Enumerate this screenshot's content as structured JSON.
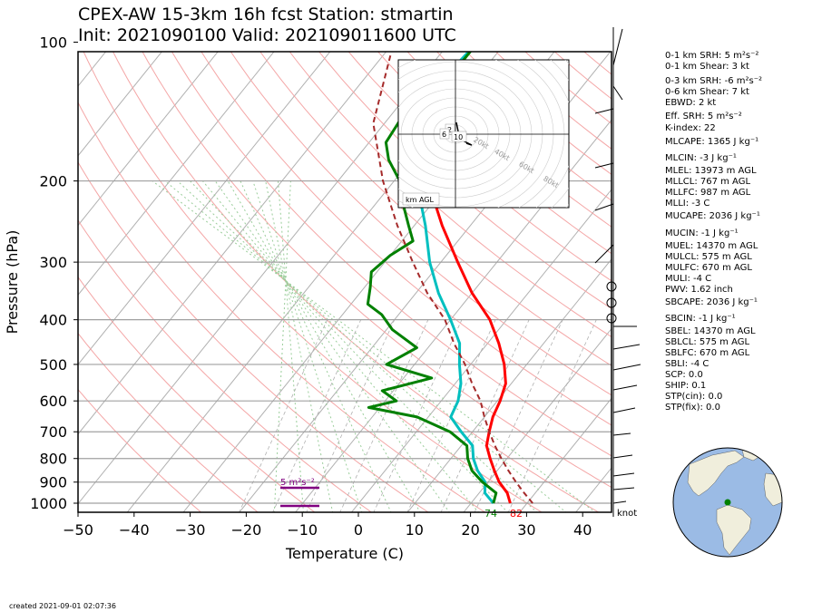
{
  "title": {
    "line1": "CPEX-AW 15-3km  16h fcst  Station: stmartin",
    "line2": "Init: 2021090100  Valid: 202109011600 UTC"
  },
  "created": "created 2021-09-01 02:07:36",
  "chart_data": {
    "type": "line",
    "subtype": "skew-T log-P",
    "xlabel": "Temperature (C)",
    "ylabel": "Pressure (hPa)",
    "xlim": [
      -50,
      45
    ],
    "ylim": [
      1050,
      100
    ],
    "y_scale": "log",
    "grid": true,
    "x_ticks": [
      "−50",
      "−40",
      "−30",
      "−20",
      "−10",
      "0",
      "10",
      "20",
      "30",
      "40"
    ],
    "y_ticks": [
      1000,
      900,
      800,
      700,
      600,
      500,
      400,
      300,
      200,
      100
    ],
    "series": [
      {
        "color": "#ff0000",
        "points": [
          [
            27,
            1000
          ],
          [
            25,
            950
          ],
          [
            22,
            900
          ],
          [
            19.5,
            850
          ],
          [
            17,
            800
          ],
          [
            14.5,
            750
          ],
          [
            13,
            700
          ],
          [
            11.5,
            650
          ],
          [
            10.5,
            600
          ],
          [
            9,
            550
          ],
          [
            6,
            500
          ],
          [
            2,
            450
          ],
          [
            -3,
            400
          ],
          [
            -10,
            350
          ],
          [
            -17,
            300
          ],
          [
            -25,
            250
          ],
          [
            -34,
            200
          ]
        ]
      },
      {
        "color": "#00bfbf",
        "points": [
          [
            24,
            1000
          ],
          [
            21,
            950
          ],
          [
            19.5,
            900
          ],
          [
            16.5,
            850
          ],
          [
            14,
            800
          ],
          [
            12,
            750
          ],
          [
            8,
            700
          ],
          [
            4,
            650
          ],
          [
            3,
            600
          ],
          [
            1,
            550
          ],
          [
            -2,
            500
          ],
          [
            -5,
            450
          ],
          [
            -10,
            400
          ],
          [
            -16,
            350
          ],
          [
            -22,
            300
          ],
          [
            -28,
            250
          ],
          [
            -36,
            200
          ],
          [
            -43,
            160
          ],
          [
            -46,
            120
          ],
          [
            -45,
            100
          ]
        ]
      },
      {
        "color": "#008000",
        "points": [
          [
            24,
            1000
          ],
          [
            23,
            950
          ],
          [
            19,
            900
          ],
          [
            15.5,
            850
          ],
          [
            13,
            800
          ],
          [
            11,
            750
          ],
          [
            6,
            700
          ],
          [
            -2,
            650
          ],
          [
            -12,
            620
          ],
          [
            -8,
            600
          ],
          [
            -12,
            570
          ],
          [
            -5,
            535
          ],
          [
            -15,
            500
          ],
          [
            -12,
            460
          ],
          [
            -19,
            420
          ],
          [
            -23,
            390
          ],
          [
            -27,
            370
          ],
          [
            -29,
            340
          ],
          [
            -31,
            315
          ],
          [
            -30,
            290
          ],
          [
            -28,
            270
          ],
          [
            -31,
            250
          ],
          [
            -35,
            225
          ],
          [
            -39,
            200
          ],
          [
            -44,
            180
          ],
          [
            -47,
            165
          ],
          [
            -48,
            140
          ],
          [
            -45,
            125
          ],
          [
            -45,
            100
          ]
        ]
      },
      {
        "color": "#a52a2a",
        "dashed": true,
        "points": [
          [
            31,
            1000
          ],
          [
            28,
            950
          ],
          [
            25,
            900
          ],
          [
            22,
            850
          ],
          [
            19,
            800
          ],
          [
            16,
            750
          ],
          [
            13,
            700
          ],
          [
            10,
            650
          ],
          [
            7,
            600
          ],
          [
            3,
            550
          ],
          [
            -1,
            500
          ],
          [
            -6,
            450
          ],
          [
            -11,
            400
          ],
          [
            -18,
            350
          ],
          [
            -25,
            300
          ],
          [
            -33,
            250
          ],
          [
            -42,
            200
          ],
          [
            -52,
            150
          ],
          [
            -60,
            100
          ]
        ]
      }
    ],
    "surface_labels": [
      {
        "text": "74",
        "color": "#008000",
        "t": 23.5
      },
      {
        "text": "82",
        "color": "#ff0000",
        "t": 28
      }
    ],
    "srh_bar_label": "5 m²s⁻²",
    "hodograph": {
      "rings": [
        "20kt",
        "40kt",
        "60kt",
        "80kt"
      ],
      "height_labels": [
        "2",
        "6",
        "10"
      ],
      "label": "km AGL"
    },
    "wind_units": "knot"
  },
  "indices": [
    "0-1 km SRH: 5 m²s⁻²",
    "0-1 km Shear: 3 kt",
    "0-3 km SRH: -6 m²s⁻²",
    "0-6 km Shear: 7 kt",
    "EBWD: 2 kt",
    "Eff. SRH: 5 m²s⁻²",
    "K-index: 22",
    "MLCAPE: 1365 J kg⁻¹",
    "MLCIN: -3 J kg⁻¹",
    "MLEL: 13973 m AGL",
    "MLLCL: 767 m AGL",
    "MLLFC: 987 m AGL",
    "MLLI: -3 C",
    "MUCAPE: 2036 J kg⁻¹",
    "MUCIN: -1 J kg⁻¹",
    "MUEL: 14370 m AGL",
    "MULCL: 575 m AGL",
    "MULFC: 670 m AGL",
    "MULI: -4 C",
    "PWV: 1.62 inch",
    "SBCAPE: 2036 J kg⁻¹",
    "SBCIN: -1 J kg⁻¹",
    "SBEL: 14370 m AGL",
    "SBLCL: 575 m AGL",
    "SBLFC: 670 m AGL",
    "SBLI: -4 C",
    "SCP: 0.0",
    "SHIP: 0.1",
    "STP(cin): 0.0",
    "STP(fix): 0.0"
  ],
  "colors": {
    "temperature": "#ff0000",
    "dewpoint": "#008000",
    "wetbulb": "#00bfbf",
    "parcel": "#a52a2a",
    "srh_bar": "#800080",
    "ocean": "#9bbbe5",
    "land": "#f0eedc"
  }
}
